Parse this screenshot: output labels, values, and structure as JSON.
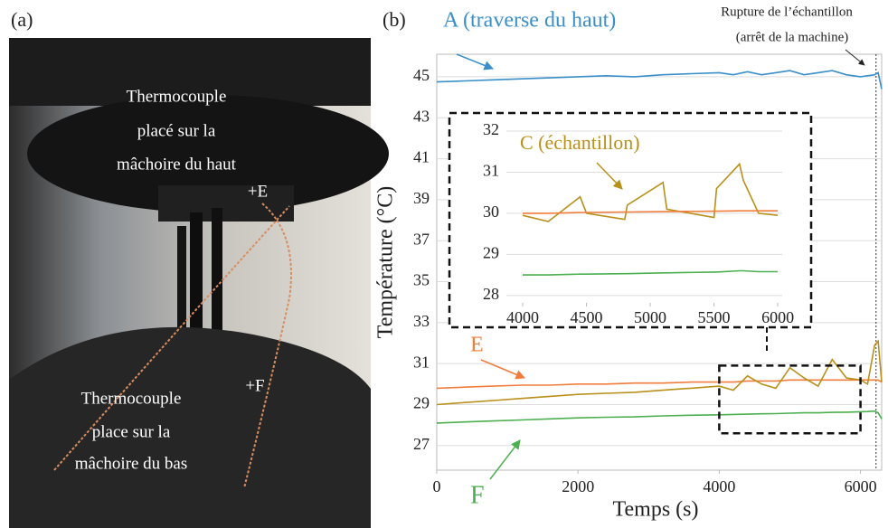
{
  "photo": {
    "label": "(a)",
    "top_label": [
      "Thermocouple",
      "placé sur la",
      "mâchoire du haut"
    ],
    "bottom_label": [
      "Thermocouple",
      "place sur la",
      "mâchoire du bas"
    ],
    "marker_e": "+E",
    "marker_f": "+F"
  },
  "chart_data": [
    {
      "type": "line",
      "panel_label": "(b)",
      "x_label": "Temps (s)",
      "y_label": "Température (°C)",
      "annotations": [
        "A (traverse du haut)",
        "E",
        "F",
        "Rupture de l’échantillon",
        "(arrêt de la machine)"
      ],
      "x": [
        0,
        400,
        800,
        1200,
        1600,
        2000,
        2400,
        2800,
        3200,
        3600,
        4000,
        4200,
        4400,
        4600,
        4800,
        5000,
        5200,
        5400,
        5600,
        5800,
        6000,
        6100,
        6200,
        6250,
        6300
      ],
      "series": [
        {
          "name": "A",
          "color": "#3a8fc9",
          "values": [
            44.75,
            44.8,
            44.85,
            44.9,
            44.95,
            45.0,
            45.05,
            45.0,
            45.1,
            45.15,
            45.2,
            45.1,
            45.25,
            45.1,
            45.2,
            45.3,
            45.1,
            45.2,
            45.3,
            45.1,
            45.0,
            45.05,
            45.1,
            45.2,
            44.4
          ]
        },
        {
          "name": "E",
          "color": "#f07d3c",
          "values": [
            29.8,
            29.85,
            29.9,
            29.95,
            29.95,
            30.0,
            30.0,
            30.05,
            30.05,
            30.1,
            30.1,
            30.1,
            30.15,
            30.15,
            30.15,
            30.2,
            30.2,
            30.2,
            30.2,
            30.2,
            30.2,
            30.2,
            30.2,
            30.2,
            30.1
          ]
        },
        {
          "name": "C",
          "color": "#b8901a",
          "values": [
            29.0,
            29.1,
            29.2,
            29.3,
            29.4,
            29.5,
            29.55,
            29.6,
            29.7,
            29.8,
            29.9,
            29.7,
            30.4,
            30.0,
            29.8,
            30.8,
            30.3,
            29.9,
            31.2,
            30.3,
            30.2,
            30.0,
            31.9,
            32.1,
            30.1
          ]
        },
        {
          "name": "F",
          "color": "#4caf50",
          "values": [
            28.1,
            28.15,
            28.2,
            28.25,
            28.3,
            28.35,
            28.38,
            28.4,
            28.45,
            28.48,
            28.5,
            28.52,
            28.53,
            28.55,
            28.56,
            28.58,
            28.6,
            28.6,
            28.62,
            28.63,
            28.65,
            28.66,
            28.68,
            28.6,
            28.3
          ]
        }
      ],
      "xlim": [
        0,
        6300
      ],
      "ylim": [
        25.8,
        46.1
      ],
      "xticks": [
        0,
        2000,
        4000,
        6000
      ],
      "yticks": [
        27,
        29,
        31,
        33,
        35,
        37,
        39,
        41,
        43,
        45
      ],
      "grid": true,
      "vlines": [
        6220
      ],
      "zoom_box": {
        "x": [
          4000,
          6000
        ],
        "y": [
          27.6,
          30.9
        ]
      }
    },
    {
      "type": "line",
      "annotations": [
        "C (échantillon)"
      ],
      "x": [
        4000,
        4200,
        4450,
        4500,
        4800,
        4820,
        5100,
        5130,
        5500,
        5520,
        5700,
        5730,
        5850,
        6000
      ],
      "series": [
        {
          "name": "C",
          "color": "#b8901a",
          "values": [
            29.95,
            29.8,
            30.4,
            30.0,
            29.85,
            30.2,
            30.75,
            30.1,
            29.9,
            30.6,
            31.2,
            30.8,
            30.0,
            29.95
          ]
        },
        {
          "name": "E",
          "color": "#f07d3c",
          "values": [
            30.0,
            30.0,
            30.02,
            30.02,
            30.03,
            30.03,
            30.04,
            30.04,
            30.05,
            30.05,
            30.06,
            30.06,
            30.06,
            30.06
          ]
        },
        {
          "name": "F",
          "color": "#4caf50",
          "values": [
            28.5,
            28.5,
            28.52,
            28.52,
            28.53,
            28.53,
            28.55,
            28.55,
            28.57,
            28.57,
            28.6,
            28.6,
            28.58,
            28.58
          ]
        }
      ],
      "xlim": [
        3872,
        6035
      ],
      "ylim": [
        27.82,
        32.22
      ],
      "xticks": [
        4000,
        4500,
        5000,
        5500,
        6000
      ],
      "yticks": [
        28,
        29,
        30,
        31,
        32
      ],
      "grid": true
    }
  ]
}
